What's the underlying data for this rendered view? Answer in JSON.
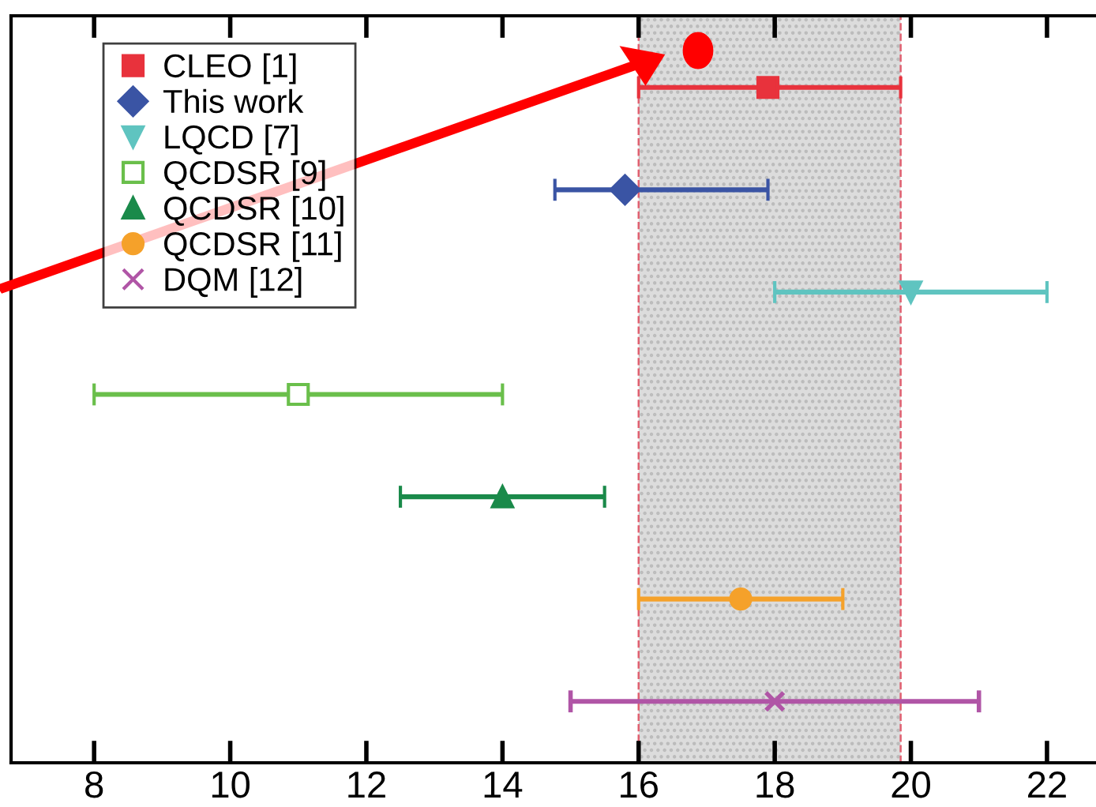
{
  "chart_data": {
    "type": "scatter",
    "orientation": "horizontal",
    "categories": [
      null,
      null,
      null,
      null,
      null,
      null,
      null
    ],
    "series": [
      {
        "name": "CLEO [1]",
        "color": "#e8323c",
        "marker": "square",
        "values": [
          17.9,
          null,
          null,
          null,
          null,
          null,
          null
        ],
        "errors": [
          [
            16,
            19.85
          ],
          null,
          null,
          null,
          null,
          null,
          null
        ]
      },
      {
        "name": "This work",
        "color": "#3a54a4",
        "marker": "diamond",
        "values": [
          null,
          15.8,
          null,
          null,
          null,
          null,
          null
        ],
        "errors": [
          null,
          [
            14.77,
            17.9
          ],
          null,
          null,
          null,
          null,
          null
        ]
      },
      {
        "name": "LQCD [7]",
        "color": "#5fc4c0",
        "marker": "triangle_down",
        "values": [
          null,
          null,
          20.0,
          null,
          null,
          null,
          null
        ],
        "errors": [
          null,
          null,
          [
            18,
            22
          ],
          null,
          null,
          null,
          null
        ]
      },
      {
        "name": "QCDSR [9]",
        "color": "#6abf4b",
        "marker": "square_open",
        "values": [
          null,
          null,
          null,
          11.0,
          null,
          null,
          null
        ],
        "errors": [
          null,
          null,
          null,
          [
            8,
            14
          ],
          null,
          null,
          null
        ]
      },
      {
        "name": "QCDSR [10]",
        "color": "#1a8a4a",
        "marker": "triangle",
        "values": [
          null,
          null,
          null,
          null,
          14.0,
          null,
          null
        ],
        "errors": [
          null,
          null,
          null,
          null,
          [
            12.5,
            15.5
          ],
          null,
          null
        ]
      },
      {
        "name": "QCDSR [11]",
        "color": "#f5a12a",
        "marker": "circle",
        "values": [
          null,
          null,
          null,
          null,
          null,
          17.5,
          null
        ],
        "errors": [
          null,
          null,
          null,
          null,
          null,
          [
            16,
            19
          ],
          null
        ]
      },
      {
        "name": "DQM [12]",
        "color": "#b055a6",
        "marker": "cross",
        "values": [
          null,
          null,
          null,
          null,
          null,
          null,
          18.0
        ],
        "errors": [
          null,
          null,
          null,
          null,
          null,
          null,
          [
            15,
            21
          ]
        ]
      }
    ],
    "xlim": [
      6.78,
      22.72
    ],
    "xticks": [
      8,
      10,
      12,
      14,
      16,
      18,
      20,
      22
    ],
    "bands": [
      {
        "axis": "x",
        "from": 16,
        "to": 19.85,
        "color": "#dcdcdc"
      }
    ],
    "ref_lines": [
      {
        "axis": "x",
        "value": 16,
        "color": "#e06070",
        "line_style": "dashed"
      },
      {
        "axis": "x",
        "value": 19.85,
        "color": "#e06070",
        "line_style": "dashed"
      }
    ],
    "legend": "top left",
    "grid": false,
    "tick_labels": "x"
  }
}
